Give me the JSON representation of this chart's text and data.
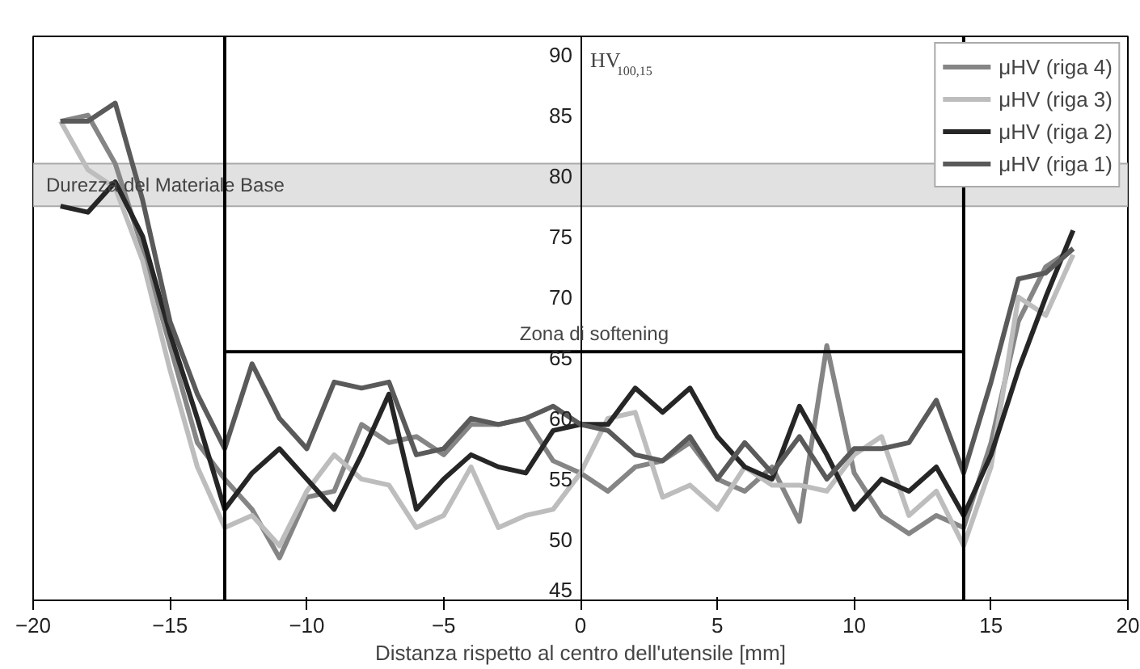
{
  "chart_data": {
    "type": "line",
    "xlabel": "Distanza rispetto al centro dell'utensile [mm]",
    "ylabel": "HV$_{100,15}$",
    "x": [
      -19,
      -18,
      -17,
      -16,
      -15,
      -14,
      -13,
      -12,
      -11,
      -10,
      -9,
      -8,
      -7,
      -6,
      -5,
      -4,
      -3,
      -2,
      -1,
      0,
      1,
      2,
      3,
      4,
      5,
      6,
      7,
      8,
      9,
      10,
      11,
      12,
      13,
      14,
      15,
      16,
      17,
      18
    ],
    "series": [
      {
        "name": "μHV (riga 4)",
        "color": "#858585",
        "values": [
          84.5,
          85,
          81,
          74,
          66,
          58,
          55,
          52.5,
          48.5,
          53.5,
          54,
          59.5,
          58,
          58.5,
          57,
          59.5,
          59.5,
          60,
          56.5,
          55.5,
          54,
          56,
          56.5,
          58,
          55,
          54,
          56,
          51.5,
          66,
          55.5,
          52,
          50.5,
          52,
          51,
          58,
          68,
          72.5,
          74
        ]
      },
      {
        "name": "μHV (riga 3)",
        "color": "#bdbdbd",
        "values": [
          84.5,
          80.5,
          79,
          73,
          64,
          56,
          51,
          52,
          49.5,
          54,
          57,
          55,
          54.5,
          51,
          52,
          56,
          51,
          52,
          52.5,
          55.5,
          60,
          60.5,
          53.5,
          54.5,
          52.5,
          56,
          54.5,
          54.5,
          54,
          57,
          58.5,
          52,
          54,
          49.5,
          56,
          70,
          68.5,
          73.5
        ]
      },
      {
        "name": "μHV (riga 2)",
        "color": "#262626",
        "values": [
          77.5,
          77,
          79.5,
          75,
          67,
          60,
          52.5,
          55.5,
          57.5,
          55,
          52.5,
          57,
          62,
          52.5,
          55,
          57,
          56,
          55.5,
          59,
          59.5,
          59.5,
          62.5,
          60.5,
          62.5,
          58.5,
          56,
          55,
          61,
          57,
          52.5,
          55,
          54,
          56,
          52,
          57,
          64,
          70,
          75.5
        ]
      },
      {
        "name": "μHV (riga 1)",
        "color": "#5a5a5a",
        "values": [
          84.5,
          84.5,
          86,
          78,
          68,
          62,
          57.5,
          64.5,
          60,
          57.5,
          63,
          62.5,
          63,
          57,
          57.5,
          60,
          59.5,
          60,
          61,
          59.5,
          59,
          57,
          56.5,
          58.5,
          55,
          58,
          55.5,
          58.5,
          55,
          57.5,
          57.5,
          58,
          61.5,
          55.5,
          63,
          71.5,
          72,
          74
        ]
      },
      {
        "x": [
          -13,
          14
        ],
        "color": "#000000",
        "values": [
          65.5,
          65.5
        ]
      }
    ],
    "xlim": [
      -20,
      20
    ],
    "xticks": [
      -20,
      -15,
      -10,
      -5,
      0,
      5,
      10,
      15,
      20
    ],
    "ylim": [
      45,
      91.5
    ],
    "yticks": [
      45,
      50,
      55,
      60,
      65,
      70,
      75,
      80,
      85,
      90
    ],
    "bands": [
      {
        "axis": "y",
        "from": 77.5,
        "to": 81,
        "label": "Durezza del Materiale Base",
        "color": "#d9d9d9"
      }
    ],
    "ref_lines": [
      {
        "axis": "x",
        "value": -13,
        "color": "#000000"
      },
      {
        "axis": "x",
        "value": 14,
        "color": "#000000"
      }
    ],
    "annotations": [
      {
        "text": "Zona di softening",
        "x": 0.5,
        "y": 65.5
      }
    ],
    "legend": "top right",
    "grid": false
  }
}
